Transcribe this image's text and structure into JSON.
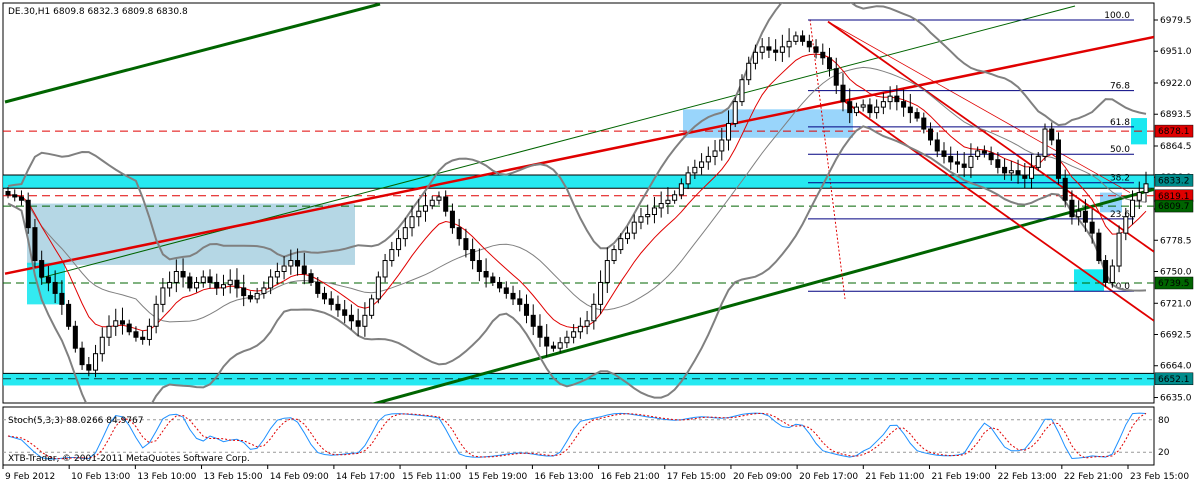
{
  "header": {
    "symbol_info": "DE.30,H1  6809.8 6832.3 6809.8 6830.8",
    "stoch_info": "Stoch(5,3,3) 88.0266 84.9767",
    "copyright": "XTB-Trader, © 2001-2011 MetaQuotes Software Corp."
  },
  "colors": {
    "bull_body": "#ffffff",
    "bear_body": "#000000",
    "ma_fast": "#e00000",
    "bollinger": "#808080",
    "trend_green": "#006400",
    "trend_red": "#e00000",
    "zone_cyan": "#00e5ee",
    "zone_blue": "#87cefa",
    "zone_gray": "#a8d0e0",
    "fib": "#000080",
    "stoch_main": "#1e90ff",
    "stoch_signal": "#e00000"
  },
  "chart_data": {
    "type": "candlestick",
    "timeframe": "H1",
    "ylim": [
      6630,
      6995
    ],
    "y_ticks": [
      "6979.5",
      "6951.0",
      "6922.0",
      "6893.5",
      "6864.5",
      "6836.0",
      "6807.0",
      "6778.5",
      "6750.0",
      "6721.0",
      "6692.5",
      "6664.0",
      "6635.0"
    ],
    "x_ticks": [
      "9 Feb 2012",
      "10 Feb 13:00",
      "13 Feb 10:00",
      "13 Feb 15:00",
      "14 Feb 09:00",
      "14 Feb 17:00",
      "15 Feb 11:00",
      "15 Feb 19:00",
      "16 Feb 13:00",
      "16 Feb 21:00",
      "17 Feb 15:00",
      "20 Feb 09:00",
      "20 Feb 17:00",
      "21 Feb 11:00",
      "21 Feb 19:00",
      "22 Feb 13:00",
      "22 Feb 21:00",
      "23 Feb 15:00"
    ],
    "price_labels": [
      {
        "text": "6878.1",
        "value": 6878.1,
        "color": "#e00000"
      },
      {
        "text": "6833.2",
        "value": 6833.2,
        "color": "#008b8b"
      },
      {
        "text": "6819.1",
        "value": 6819.1,
        "color": "#e00000"
      },
      {
        "text": "6809.7",
        "value": 6809.7,
        "color": "#006400"
      },
      {
        "text": "6739.5",
        "value": 6739.5,
        "color": "#006400"
      },
      {
        "text": "6652.1",
        "value": 6652.1,
        "color": "#008b8b"
      }
    ],
    "fibonacci": [
      {
        "label": "100.0",
        "value": 6979.5
      },
      {
        "label": "76.8",
        "value": 6915.0
      },
      {
        "label": "61.8",
        "value": 6882.0
      },
      {
        "label": "50.0",
        "value": 6857.0
      },
      {
        "label": "38.2",
        "value": 6831.0
      },
      {
        "label": "23.6",
        "value": 6798.0
      },
      {
        "label": "0.0",
        "value": 6732.0
      }
    ],
    "close": [
      6820,
      6818,
      6815,
      6790,
      6760,
      6745,
      6740,
      6730,
      6720,
      6700,
      6680,
      6665,
      6660,
      6675,
      6690,
      6700,
      6705,
      6702,
      6695,
      6690,
      6688,
      6700,
      6720,
      6735,
      6740,
      6750,
      6745,
      6735,
      6740,
      6745,
      6740,
      6735,
      6738,
      6742,
      6735,
      6728,
      6725,
      6730,
      6735,
      6745,
      6750,
      6755,
      6760,
      6755,
      6748,
      6740,
      6730,
      6725,
      6720,
      6715,
      6710,
      6705,
      6700,
      6710,
      6725,
      6745,
      6760,
      6770,
      6780,
      6790,
      6800,
      6805,
      6810,
      6815,
      6818,
      6805,
      6790,
      6780,
      6770,
      6760,
      6750,
      6745,
      6740,
      6735,
      6730,
      6725,
      6720,
      6710,
      6700,
      6690,
      6682,
      6680,
      6685,
      6690,
      6695,
      6700,
      6705,
      6720,
      6740,
      6760,
      6770,
      6780,
      6785,
      6795,
      6800,
      6802,
      6808,
      6812,
      6815,
      6820,
      6830,
      6840,
      6845,
      6850,
      6855,
      6860,
      6870,
      6885,
      6905,
      6925,
      6940,
      6950,
      6955,
      6952,
      6950,
      6955,
      6960,
      6965,
      6960,
      6955,
      6950,
      6945,
      6935,
      6920,
      6905,
      6895,
      6900,
      6902,
      6895,
      6900,
      6905,
      6910,
      6905,
      6900,
      6895,
      6890,
      6880,
      6870,
      6860,
      6855,
      6850,
      6848,
      6845,
      6855,
      6860,
      6858,
      6852,
      6845,
      6840,
      6842,
      6838,
      6835,
      6845,
      6855,
      6880,
      6870,
      6835,
      6815,
      6800,
      6805,
      6795,
      6785,
      6760,
      6740,
      6755,
      6785,
      6800,
      6815,
      6822,
      6830
    ],
    "stoch_ylim": [
      0,
      100
    ],
    "stoch_levels": [
      80,
      20
    ],
    "stoch_ticks": [
      "80",
      "20"
    ]
  }
}
